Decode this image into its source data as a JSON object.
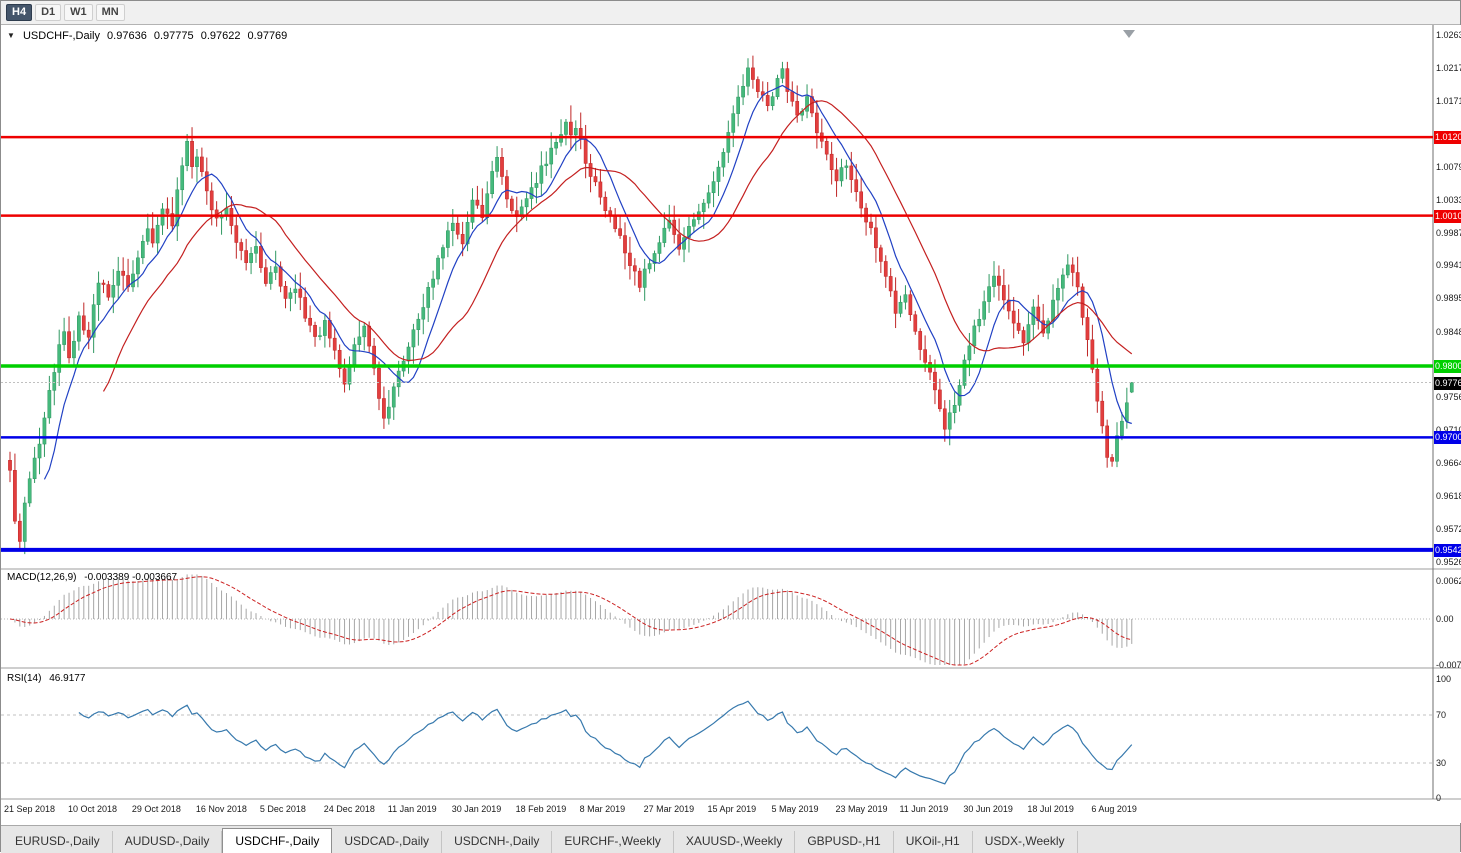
{
  "toolbar": {
    "timeframes": [
      {
        "label": "H4",
        "active": true
      },
      {
        "label": "D1",
        "active": false
      },
      {
        "label": "W1",
        "active": false
      },
      {
        "label": "MN",
        "active": false
      }
    ]
  },
  "chart_header": {
    "collapse_icon": "▼",
    "symbol": "USDCHF-,Daily",
    "open": "0.97636",
    "high": "0.97775",
    "low": "0.97622",
    "close": "0.97769"
  },
  "price_axis": {
    "ticks": [
      1.0263,
      1.0217,
      1.0171,
      1.0079,
      1.0033,
      0.9987,
      0.9941,
      0.9895,
      0.9848,
      0.9756,
      0.971,
      0.9664,
      0.9618,
      0.9572,
      0.9526
    ]
  },
  "levels": [
    {
      "label": "1.01205",
      "value": 1.01205,
      "color": "#ee0000",
      "width": 2.5
    },
    {
      "label": "1.00106",
      "value": 1.00106,
      "color": "#ee0000",
      "width": 2.5
    },
    {
      "label": "0.98000",
      "value": 0.98,
      "color": "#00cf00",
      "width": 3.5
    },
    {
      "label": "0.97001",
      "value": 0.97001,
      "color": "#0000e8",
      "width": 2.5
    },
    {
      "label": "0.95425",
      "value": 0.95425,
      "color": "#0000e8",
      "width": 4
    }
  ],
  "bid": {
    "label": "0.97769",
    "value": 0.97769
  },
  "macd_panel": {
    "name": "MACD(12,26,9)",
    "values": "-0.003389 -0.003667",
    "axis": [
      {
        "label": "0.006286",
        "value": 0.006286
      },
      {
        "label": "0.00",
        "value": 0
      },
      {
        "label": "-0.00762",
        "value": -0.00762
      }
    ]
  },
  "rsi_panel": {
    "name": "RSI(14)",
    "value": "46.9177",
    "axis": [
      {
        "label": "100",
        "value": 100
      },
      {
        "label": "70",
        "value": 70
      },
      {
        "label": "30",
        "value": 30
      },
      {
        "label": "0",
        "value": 0
      }
    ],
    "levels": [
      70,
      30
    ]
  },
  "x_axis": {
    "spacing_days": 13,
    "labels": [
      "21 Sep 2018",
      "10 Oct 2018",
      "29 Oct 2018",
      "16 Nov 2018",
      "5 Dec 2018",
      "24 Dec 2018",
      "11 Jan 2019",
      "30 Jan 2019",
      "18 Feb 2019",
      "8 Mar 2019",
      "27 Mar 2019",
      "15 Apr 2019",
      "5 May 2019",
      "23 May 2019",
      "11 Jun 2019",
      "30 Jun 2019",
      "18 Jul 2019",
      "6 Aug 2019"
    ]
  },
  "tabs": [
    {
      "label": "EURUSD-,Daily",
      "active": false
    },
    {
      "label": "AUDUSD-,Daily",
      "active": false
    },
    {
      "label": "USDCHF-,Daily",
      "active": true
    },
    {
      "label": "USDCAD-,Daily",
      "active": false
    },
    {
      "label": "USDCNH-,Daily",
      "active": false
    },
    {
      "label": "EURCHF-,Weekly",
      "active": false
    },
    {
      "label": "XAUUSD-,Weekly",
      "active": false
    },
    {
      "label": "GBPUSD-,H1",
      "active": false
    },
    {
      "label": "UKOil-,H1",
      "active": false
    },
    {
      "label": "USDX-,Weekly",
      "active": false
    }
  ],
  "chart_data": {
    "type": "candlestick",
    "symbol": "USDCHF",
    "timeframe": "Daily",
    "num_candles": 229,
    "noise": 0.0013,
    "y_range": [
      0.952,
      1.0272
    ],
    "last_candle": {
      "open": 0.97636,
      "high": 0.97775,
      "low": 0.97622,
      "close": 0.97769
    },
    "price_keyframes": [
      [
        0,
        0.965
      ],
      [
        1,
        0.9578
      ],
      [
        2,
        0.9556
      ],
      [
        3,
        0.9604
      ],
      [
        4,
        0.964
      ],
      [
        6,
        0.9692
      ],
      [
        8,
        0.9762
      ],
      [
        10,
        0.9824
      ],
      [
        11,
        0.9846
      ],
      [
        12,
        0.9814
      ],
      [
        14,
        0.9868
      ],
      [
        16,
        0.9844
      ],
      [
        18,
        0.9922
      ],
      [
        20,
        0.9896
      ],
      [
        22,
        0.9934
      ],
      [
        24,
        0.9912
      ],
      [
        26,
        0.9956
      ],
      [
        28,
        0.9992
      ],
      [
        29,
        0.9968
      ],
      [
        31,
        1.0026
      ],
      [
        33,
        1.0
      ],
      [
        35,
        1.0084
      ],
      [
        36,
        1.0112
      ],
      [
        37,
        1.0078
      ],
      [
        38,
        1.0096
      ],
      [
        40,
        1.0042
      ],
      [
        42,
        1.0008
      ],
      [
        44,
        1.0026
      ],
      [
        46,
        0.9978
      ],
      [
        48,
        0.9942
      ],
      [
        50,
        0.9962
      ],
      [
        52,
        0.9914
      ],
      [
        54,
        0.9938
      ],
      [
        56,
        0.9892
      ],
      [
        58,
        0.9914
      ],
      [
        60,
        0.9868
      ],
      [
        62,
        0.9838
      ],
      [
        64,
        0.9858
      ],
      [
        66,
        0.9818
      ],
      [
        68,
        0.978
      ],
      [
        70,
        0.9828
      ],
      [
        72,
        0.9852
      ],
      [
        74,
        0.9792
      ],
      [
        76,
        0.9728
      ],
      [
        78,
        0.9768
      ],
      [
        80,
        0.9806
      ],
      [
        82,
        0.9846
      ],
      [
        84,
        0.9888
      ],
      [
        86,
        0.9926
      ],
      [
        88,
        0.9972
      ],
      [
        90,
        0.9996
      ],
      [
        92,
        0.997
      ],
      [
        94,
        1.0034
      ],
      [
        96,
        1.0008
      ],
      [
        98,
        1.0072
      ],
      [
        99,
        1.009
      ],
      [
        101,
        1.003
      ],
      [
        103,
        1.0004
      ],
      [
        105,
        1.004
      ],
      [
        107,
        1.0062
      ],
      [
        109,
        1.0088
      ],
      [
        111,
        1.0112
      ],
      [
        113,
        1.0138
      ],
      [
        114,
        1.0118
      ],
      [
        115,
        1.0134
      ],
      [
        117,
        1.009
      ],
      [
        119,
        1.0052
      ],
      [
        121,
        1.002
      ],
      [
        123,
        0.9992
      ],
      [
        125,
        0.9962
      ],
      [
        127,
        0.993
      ],
      [
        128,
        0.9916
      ],
      [
        130,
        0.9946
      ],
      [
        132,
        0.9978
      ],
      [
        134,
        0.9998
      ],
      [
        136,
        0.997
      ],
      [
        138,
        0.9994
      ],
      [
        140,
        1.0016
      ],
      [
        142,
        1.0046
      ],
      [
        144,
        1.008
      ],
      [
        146,
        1.0126
      ],
      [
        148,
        1.018
      ],
      [
        150,
        1.0216
      ],
      [
        152,
        1.019
      ],
      [
        154,
        1.0162
      ],
      [
        156,
        1.0198
      ],
      [
        157,
        1.022
      ],
      [
        158,
        1.0186
      ],
      [
        160,
        1.0152
      ],
      [
        162,
        1.0172
      ],
      [
        164,
        1.0128
      ],
      [
        166,
        1.0092
      ],
      [
        168,
        1.0064
      ],
      [
        170,
        1.0082
      ],
      [
        172,
        1.0042
      ],
      [
        174,
        1.0006
      ],
      [
        176,
        0.997
      ],
      [
        178,
        0.9924
      ],
      [
        180,
        0.988
      ],
      [
        182,
        0.9902
      ],
      [
        184,
        0.9852
      ],
      [
        186,
        0.9802
      ],
      [
        188,
        0.9768
      ],
      [
        190,
        0.9718
      ],
      [
        192,
        0.9742
      ],
      [
        194,
        0.9802
      ],
      [
        196,
        0.9854
      ],
      [
        198,
        0.9886
      ],
      [
        200,
        0.9926
      ],
      [
        202,
        0.9898
      ],
      [
        204,
        0.9862
      ],
      [
        206,
        0.9838
      ],
      [
        208,
        0.9878
      ],
      [
        210,
        0.9848
      ],
      [
        212,
        0.989
      ],
      [
        214,
        0.9932
      ],
      [
        215,
        0.9944
      ],
      [
        217,
        0.9906
      ],
      [
        218,
        0.987
      ],
      [
        219,
        0.9836
      ],
      [
        220,
        0.98
      ],
      [
        221,
        0.9756
      ],
      [
        222,
        0.9712
      ],
      [
        223,
        0.9678
      ],
      [
        224,
        0.9664
      ],
      [
        225,
        0.97
      ],
      [
        226,
        0.9726
      ],
      [
        227,
        0.975
      ],
      [
        228,
        0.97769
      ]
    ],
    "wick_overrides": {
      "2": {
        "low": 0.9542
      },
      "36": {
        "high": 1.0125
      },
      "76": {
        "low": 0.9712
      },
      "113": {
        "high": 1.0146
      },
      "150": {
        "high": 1.0231
      },
      "157": {
        "high": 1.0226
      },
      "190": {
        "low": 0.9694
      },
      "224": {
        "low": 0.9659
      }
    },
    "indicators": {
      "ma_fast": 8,
      "ma_slow": 20,
      "macd": [
        12,
        26,
        9
      ],
      "rsi": 14
    },
    "colors": {
      "up": "#45b97c",
      "up_stroke": "#2f9861",
      "down": "#e23e3e",
      "down_stroke": "#bf2626",
      "ma_fast": "#2141c4",
      "ma_slow": "#c42020",
      "macd_hist": "#a6a6a6",
      "macd_signal": "#cc2222",
      "rsi": "#3779ad",
      "bid_line": "#c0c0c0"
    }
  }
}
